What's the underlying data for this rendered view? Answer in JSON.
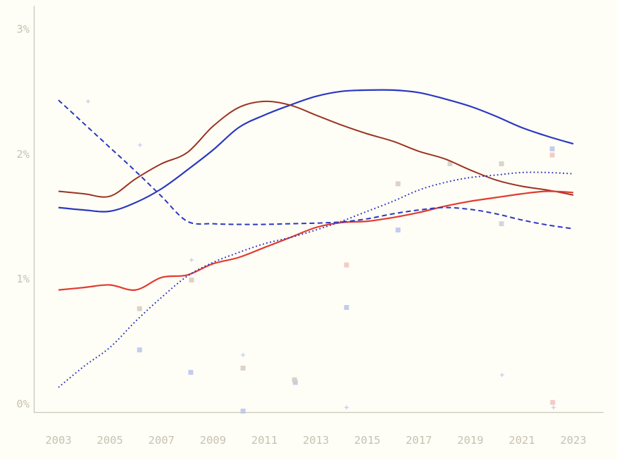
{
  "chart_data": {
    "type": "line",
    "title": "",
    "xlabel": "",
    "ylabel": "",
    "x": [
      2003,
      2004,
      2005,
      2006,
      2007,
      2008,
      2009,
      2010,
      2011,
      2012,
      2013,
      2014,
      2015,
      2016,
      2017,
      2018,
      2019,
      2020,
      2021,
      2022,
      2023
    ],
    "xtick_labels": [
      "2003",
      "2005",
      "2007",
      "2009",
      "2011",
      "2013",
      "2015",
      "2017",
      "2019",
      "2021",
      "2023"
    ],
    "yticks": [
      {
        "value": 0,
        "label": "0%"
      },
      {
        "value": 1,
        "label": "1%"
      },
      {
        "value": 2,
        "label": "2%"
      },
      {
        "value": 3,
        "label": "3%"
      }
    ],
    "ylim": [
      0,
      3
    ],
    "grid": false,
    "legend_position": "none",
    "colors": {
      "background": "#FFFEF6",
      "axis": "#CBC6B9",
      "tick_label": "#C7C1B3",
      "blue": "#2A38C2",
      "maroon": "#9A3322",
      "red": "#E23A30",
      "scatter_lightblue": "#BDC7EC",
      "scatter_star_blue": "#C9D0F0",
      "scatter_tan": "#D8CDC1",
      "scatter_pink": "#F1C6C2",
      "scatter_greyblue": "#CBD2E0"
    },
    "series": [
      {
        "name": "blue-solid",
        "style": "solid",
        "color": "#2A38C2",
        "width": 2.2,
        "values": [
          1.57,
          1.55,
          1.54,
          1.61,
          1.72,
          1.87,
          2.03,
          2.21,
          2.31,
          2.39,
          2.46,
          2.5,
          2.51,
          2.51,
          2.49,
          2.44,
          2.38,
          2.3,
          2.21,
          2.14,
          2.08
        ]
      },
      {
        "name": "maroon-solid",
        "style": "solid",
        "color": "#9A3322",
        "width": 2,
        "values": [
          1.7,
          1.68,
          1.66,
          1.8,
          1.92,
          2.01,
          2.22,
          2.37,
          2.42,
          2.39,
          2.31,
          2.23,
          2.16,
          2.1,
          2.02,
          1.96,
          1.87,
          1.79,
          1.74,
          1.71,
          1.67
        ]
      },
      {
        "name": "red-solid",
        "style": "solid",
        "color": "#E23A30",
        "width": 2.2,
        "values": [
          0.91,
          0.93,
          0.95,
          0.91,
          1.01,
          1.03,
          1.12,
          1.17,
          1.25,
          1.33,
          1.41,
          1.45,
          1.46,
          1.49,
          1.53,
          1.58,
          1.62,
          1.65,
          1.68,
          1.7,
          1.69
        ]
      },
      {
        "name": "blue-dashed",
        "style": "dashed",
        "color": "#2A38C2",
        "width": 2,
        "values": [
          2.43,
          2.24,
          2.05,
          1.86,
          1.66,
          1.46,
          1.44,
          1.435,
          1.435,
          1.44,
          1.445,
          1.455,
          1.48,
          1.52,
          1.55,
          1.57,
          1.555,
          1.52,
          1.47,
          1.43,
          1.4
        ]
      },
      {
        "name": "blue-dotted",
        "style": "dotted",
        "color": "#2A38C2",
        "width": 2,
        "values": [
          0.13,
          0.3,
          0.45,
          0.66,
          0.85,
          1.02,
          1.13,
          1.21,
          1.28,
          1.33,
          1.39,
          1.46,
          1.54,
          1.62,
          1.71,
          1.77,
          1.81,
          1.83,
          1.85,
          1.85,
          1.84
        ]
      }
    ],
    "scatter_points": [
      {
        "marker": "star",
        "color": "#C9D0F0",
        "x": 2004.15,
        "y": 2.42
      },
      {
        "marker": "star",
        "color": "#C9D0F0",
        "x": 2006.17,
        "y": 2.07
      },
      {
        "marker": "square",
        "color": "#D8CDC1",
        "x": 2006.15,
        "y": 0.76
      },
      {
        "marker": "square",
        "color": "#BDC7EC",
        "x": 2006.15,
        "y": 0.43
      },
      {
        "marker": "star",
        "color": "#C9D0F0",
        "x": 2008.17,
        "y": 1.15
      },
      {
        "marker": "square",
        "color": "#D8CDC1",
        "x": 2008.17,
        "y": 0.99
      },
      {
        "marker": "square",
        "color": "#BDC7EC",
        "x": 2008.14,
        "y": 0.25
      },
      {
        "marker": "star",
        "color": "#C9D0F0",
        "x": 2010.17,
        "y": 0.39
      },
      {
        "marker": "square",
        "color": "#D8CDC1",
        "x": 2010.17,
        "y": 0.285
      },
      {
        "marker": "square",
        "color": "#BDC7EC",
        "x": 2010.17,
        "y": -0.06
      },
      {
        "marker": "square",
        "color": "#BDC7EC",
        "x": 2012.2,
        "y": 0.17
      },
      {
        "marker": "square",
        "color": "#D8CDC1",
        "x": 2012.17,
        "y": 0.19
      },
      {
        "marker": "square",
        "color": "#F1C6C2",
        "x": 2014.19,
        "y": 1.11
      },
      {
        "marker": "square",
        "color": "#BDC7EC",
        "x": 2014.19,
        "y": 0.77
      },
      {
        "marker": "star",
        "color": "#C9D0F0",
        "x": 2014.19,
        "y": -0.03
      },
      {
        "marker": "square",
        "color": "#D8CDC1",
        "x": 2016.19,
        "y": 1.76
      },
      {
        "marker": "square",
        "color": "#BDC7EC",
        "x": 2016.19,
        "y": 1.39
      },
      {
        "marker": "square",
        "color": "#D6D0C6",
        "x": 2018.21,
        "y": 1.92
      },
      {
        "marker": "square",
        "color": "#D6D0C6",
        "x": 2020.21,
        "y": 1.92
      },
      {
        "marker": "square",
        "color": "#CBD2E0",
        "x": 2020.21,
        "y": 1.44
      },
      {
        "marker": "star",
        "color": "#C9D0F0",
        "x": 2020.23,
        "y": 0.23
      },
      {
        "marker": "square",
        "color": "#BDC7EC",
        "x": 2022.18,
        "y": 2.04
      },
      {
        "marker": "square",
        "color": "#F1C6C2",
        "x": 2022.18,
        "y": 1.99
      },
      {
        "marker": "square",
        "color": "#F1C6C2",
        "x": 2022.2,
        "y": 0.01
      },
      {
        "marker": "star",
        "color": "#C9D0F0",
        "x": 2022.23,
        "y": -0.03
      }
    ]
  }
}
